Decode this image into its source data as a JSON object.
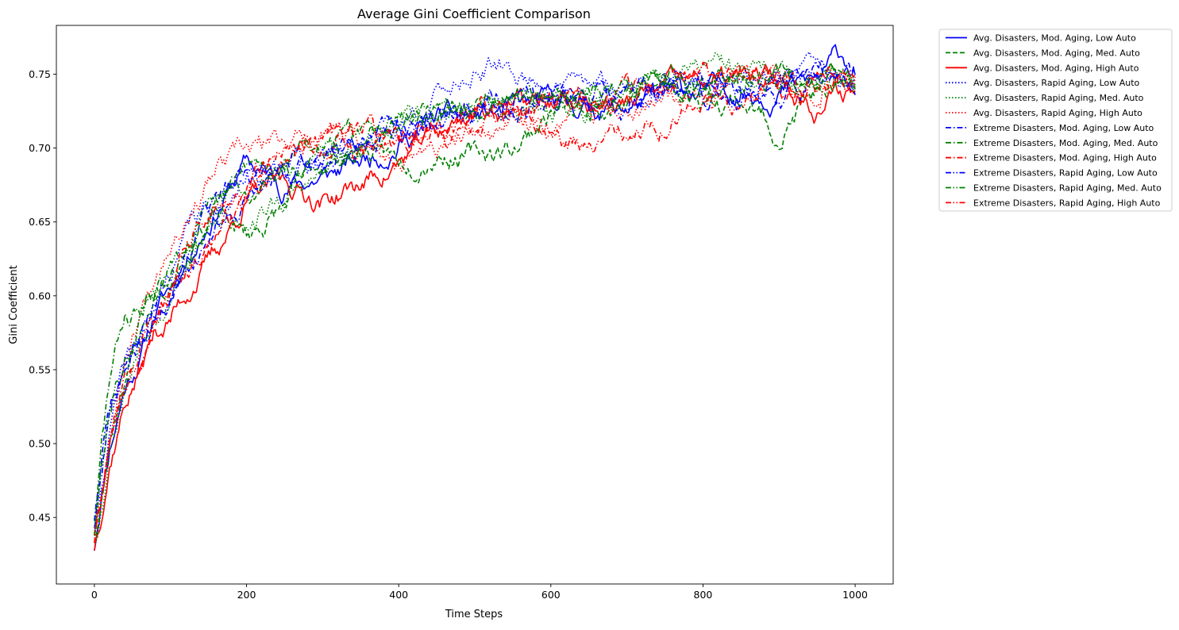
{
  "chart_data": {
    "type": "line",
    "title": "Average Gini Coefficient Comparison",
    "xlabel": "Time Steps",
    "ylabel": "Gini Coefficient",
    "xlim": [
      -50,
      1050
    ],
    "ylim": [
      0.405,
      0.783
    ],
    "xticks": [
      0,
      200,
      400,
      600,
      800,
      1000
    ],
    "yticks": [
      0.45,
      0.5,
      0.55,
      0.6,
      0.65,
      0.7,
      0.75
    ],
    "ytick_format": 2,
    "grid": false,
    "legend_position": "outside-top-right",
    "series": [
      {
        "name": "Avg. Disasters, Mod. Aging, Low Auto",
        "color": "#0000ff",
        "dash": "solid",
        "marker": "none",
        "seed": 11,
        "x": [
          0,
          10,
          20,
          40,
          60,
          80,
          100,
          130,
          160,
          200,
          250,
          300,
          350,
          400,
          450,
          500,
          550,
          600,
          650,
          700,
          750,
          800,
          850,
          900,
          950,
          980,
          1000
        ],
        "y": [
          0.43,
          0.47,
          0.5,
          0.54,
          0.56,
          0.59,
          0.605,
          0.635,
          0.66,
          0.69,
          0.675,
          0.68,
          0.69,
          0.705,
          0.72,
          0.72,
          0.725,
          0.73,
          0.728,
          0.728,
          0.735,
          0.738,
          0.74,
          0.74,
          0.745,
          0.762,
          0.755
        ]
      },
      {
        "name": "Avg. Disasters, Mod. Aging, Med. Auto",
        "color": "#008000",
        "dash": "dashed",
        "marker": "none",
        "seed": 23,
        "x": [
          0,
          10,
          20,
          40,
          60,
          80,
          100,
          130,
          160,
          200,
          250,
          300,
          350,
          400,
          450,
          500,
          550,
          600,
          650,
          700,
          750,
          800,
          850,
          900,
          950,
          1000
        ],
        "y": [
          0.435,
          0.46,
          0.5,
          0.55,
          0.575,
          0.6,
          0.615,
          0.64,
          0.655,
          0.64,
          0.66,
          0.69,
          0.7,
          0.69,
          0.7,
          0.695,
          0.7,
          0.725,
          0.73,
          0.735,
          0.74,
          0.735,
          0.735,
          0.71,
          0.74,
          0.745
        ]
      },
      {
        "name": "Avg. Disasters, Mod. Aging, High Auto",
        "color": "#ff0000",
        "dash": "solid",
        "marker": "none",
        "seed": 37,
        "x": [
          0,
          10,
          20,
          40,
          60,
          80,
          100,
          130,
          160,
          200,
          250,
          300,
          350,
          400,
          450,
          500,
          550,
          600,
          650,
          700,
          750,
          800,
          850,
          900,
          950,
          1000
        ],
        "y": [
          0.43,
          0.46,
          0.49,
          0.53,
          0.55,
          0.575,
          0.585,
          0.61,
          0.63,
          0.665,
          0.675,
          0.665,
          0.675,
          0.69,
          0.71,
          0.725,
          0.73,
          0.73,
          0.73,
          0.73,
          0.74,
          0.745,
          0.745,
          0.745,
          0.73,
          0.74
        ]
      },
      {
        "name": "Avg. Disasters, Rapid Aging, Low Auto",
        "color": "#0000ff",
        "dash": "dotted",
        "marker": "none",
        "seed": 41,
        "x": [
          0,
          10,
          20,
          40,
          60,
          80,
          100,
          130,
          160,
          200,
          250,
          300,
          350,
          400,
          450,
          500,
          550,
          600,
          650,
          700,
          750,
          800,
          850,
          900,
          950,
          1000
        ],
        "y": [
          0.44,
          0.47,
          0.51,
          0.55,
          0.57,
          0.59,
          0.615,
          0.65,
          0.66,
          0.68,
          0.685,
          0.695,
          0.705,
          0.715,
          0.735,
          0.755,
          0.75,
          0.745,
          0.74,
          0.74,
          0.745,
          0.745,
          0.75,
          0.75,
          0.755,
          0.74
        ]
      },
      {
        "name": "Avg. Disasters, Rapid Aging, Med. Auto",
        "color": "#008000",
        "dash": "dotted",
        "marker": "none",
        "seed": 53,
        "x": [
          0,
          10,
          20,
          40,
          60,
          80,
          100,
          130,
          160,
          200,
          250,
          300,
          350,
          400,
          450,
          500,
          550,
          600,
          650,
          700,
          750,
          800,
          850,
          900,
          950,
          1000
        ],
        "y": [
          0.435,
          0.46,
          0.5,
          0.545,
          0.57,
          0.59,
          0.61,
          0.63,
          0.645,
          0.655,
          0.665,
          0.68,
          0.7,
          0.715,
          0.72,
          0.73,
          0.725,
          0.725,
          0.73,
          0.735,
          0.745,
          0.755,
          0.75,
          0.745,
          0.745,
          0.75
        ]
      },
      {
        "name": "Avg. Disasters, Rapid Aging, High Auto",
        "color": "#ff0000",
        "dash": "dotted",
        "marker": "none",
        "seed": 67,
        "x": [
          0,
          10,
          20,
          40,
          60,
          80,
          100,
          130,
          160,
          200,
          250,
          300,
          350,
          400,
          450,
          500,
          550,
          600,
          650,
          700,
          750,
          800,
          850,
          900,
          950,
          1000
        ],
        "y": [
          0.44,
          0.47,
          0.51,
          0.56,
          0.59,
          0.62,
          0.645,
          0.665,
          0.685,
          0.695,
          0.705,
          0.71,
          0.7,
          0.695,
          0.7,
          0.705,
          0.715,
          0.72,
          0.725,
          0.73,
          0.74,
          0.745,
          0.745,
          0.75,
          0.745,
          0.75
        ]
      },
      {
        "name": "Extreme Disasters, Mod. Aging, Low Auto",
        "color": "#0000ff",
        "dash": "dashdot",
        "marker": "none",
        "seed": 71,
        "x": [
          0,
          10,
          20,
          40,
          60,
          80,
          100,
          130,
          160,
          200,
          250,
          300,
          350,
          400,
          450,
          500,
          550,
          600,
          650,
          700,
          750,
          800,
          850,
          900,
          950,
          1000
        ],
        "y": [
          0.45,
          0.49,
          0.52,
          0.55,
          0.565,
          0.585,
          0.6,
          0.625,
          0.65,
          0.67,
          0.68,
          0.69,
          0.7,
          0.71,
          0.72,
          0.725,
          0.73,
          0.735,
          0.73,
          0.73,
          0.735,
          0.73,
          0.735,
          0.74,
          0.74,
          0.745
        ]
      },
      {
        "name": "Extreme Disasters, Mod. Aging, Med. Auto",
        "color": "#008000",
        "dash": "dashdot",
        "marker": "none",
        "seed": 83,
        "x": [
          0,
          10,
          20,
          40,
          60,
          80,
          100,
          130,
          160,
          200,
          250,
          300,
          350,
          400,
          450,
          500,
          550,
          600,
          650,
          700,
          750,
          800,
          850,
          900,
          950,
          1000
        ],
        "y": [
          0.44,
          0.5,
          0.54,
          0.585,
          0.59,
          0.6,
          0.62,
          0.645,
          0.665,
          0.68,
          0.69,
          0.7,
          0.71,
          0.72,
          0.73,
          0.735,
          0.74,
          0.735,
          0.735,
          0.74,
          0.745,
          0.745,
          0.745,
          0.745,
          0.745,
          0.745
        ]
      },
      {
        "name": "Extreme Disasters, Mod. Aging, High Auto",
        "color": "#ff0000",
        "dash": "dashdot",
        "marker": "none",
        "seed": 97,
        "x": [
          0,
          10,
          20,
          40,
          60,
          80,
          100,
          130,
          160,
          200,
          250,
          300,
          350,
          400,
          450,
          500,
          550,
          600,
          650,
          700,
          750,
          800,
          850,
          900,
          950,
          1000
        ],
        "y": [
          0.44,
          0.48,
          0.51,
          0.55,
          0.57,
          0.59,
          0.6,
          0.625,
          0.645,
          0.665,
          0.69,
          0.7,
          0.695,
          0.7,
          0.71,
          0.72,
          0.725,
          0.73,
          0.73,
          0.735,
          0.74,
          0.745,
          0.745,
          0.745,
          0.745,
          0.745
        ]
      },
      {
        "name": "Extreme Disasters, Rapid Aging, Low Auto",
        "color": "#0000ff",
        "dash": "dashdotdot",
        "marker": "none",
        "seed": 101,
        "x": [
          0,
          10,
          20,
          40,
          60,
          80,
          100,
          130,
          160,
          200,
          250,
          300,
          350,
          400,
          450,
          500,
          550,
          600,
          650,
          700,
          750,
          800,
          850,
          900,
          950,
          1000
        ],
        "y": [
          0.445,
          0.48,
          0.52,
          0.555,
          0.575,
          0.595,
          0.61,
          0.64,
          0.66,
          0.68,
          0.69,
          0.695,
          0.705,
          0.715,
          0.72,
          0.73,
          0.735,
          0.735,
          0.735,
          0.74,
          0.74,
          0.745,
          0.745,
          0.745,
          0.75,
          0.745
        ]
      },
      {
        "name": "Extreme Disasters, Rapid Aging, Med. Auto",
        "color": "#008000",
        "dash": "dashdotdot",
        "marker": "none",
        "seed": 113,
        "x": [
          0,
          10,
          20,
          40,
          60,
          80,
          100,
          130,
          160,
          200,
          250,
          300,
          350,
          400,
          450,
          500,
          550,
          600,
          650,
          700,
          750,
          800,
          850,
          900,
          950,
          1000
        ],
        "y": [
          0.44,
          0.49,
          0.53,
          0.565,
          0.585,
          0.6,
          0.615,
          0.64,
          0.66,
          0.675,
          0.685,
          0.695,
          0.705,
          0.715,
          0.725,
          0.73,
          0.73,
          0.735,
          0.735,
          0.74,
          0.74,
          0.745,
          0.745,
          0.745,
          0.745,
          0.745
        ]
      },
      {
        "name": "Extreme Disasters, Rapid Aging, High Auto",
        "color": "#ff0000",
        "dash": "dashdotdot",
        "marker": "none",
        "seed": 127,
        "x": [
          0,
          10,
          20,
          40,
          60,
          80,
          100,
          130,
          160,
          200,
          250,
          300,
          350,
          400,
          450,
          500,
          550,
          600,
          650,
          700,
          750,
          800,
          850,
          900,
          950,
          1000
        ],
        "y": [
          0.435,
          0.47,
          0.5,
          0.545,
          0.57,
          0.59,
          0.61,
          0.64,
          0.66,
          0.68,
          0.7,
          0.71,
          0.71,
          0.705,
          0.71,
          0.715,
          0.72,
          0.705,
          0.705,
          0.71,
          0.72,
          0.73,
          0.735,
          0.74,
          0.745,
          0.75
        ]
      }
    ]
  }
}
